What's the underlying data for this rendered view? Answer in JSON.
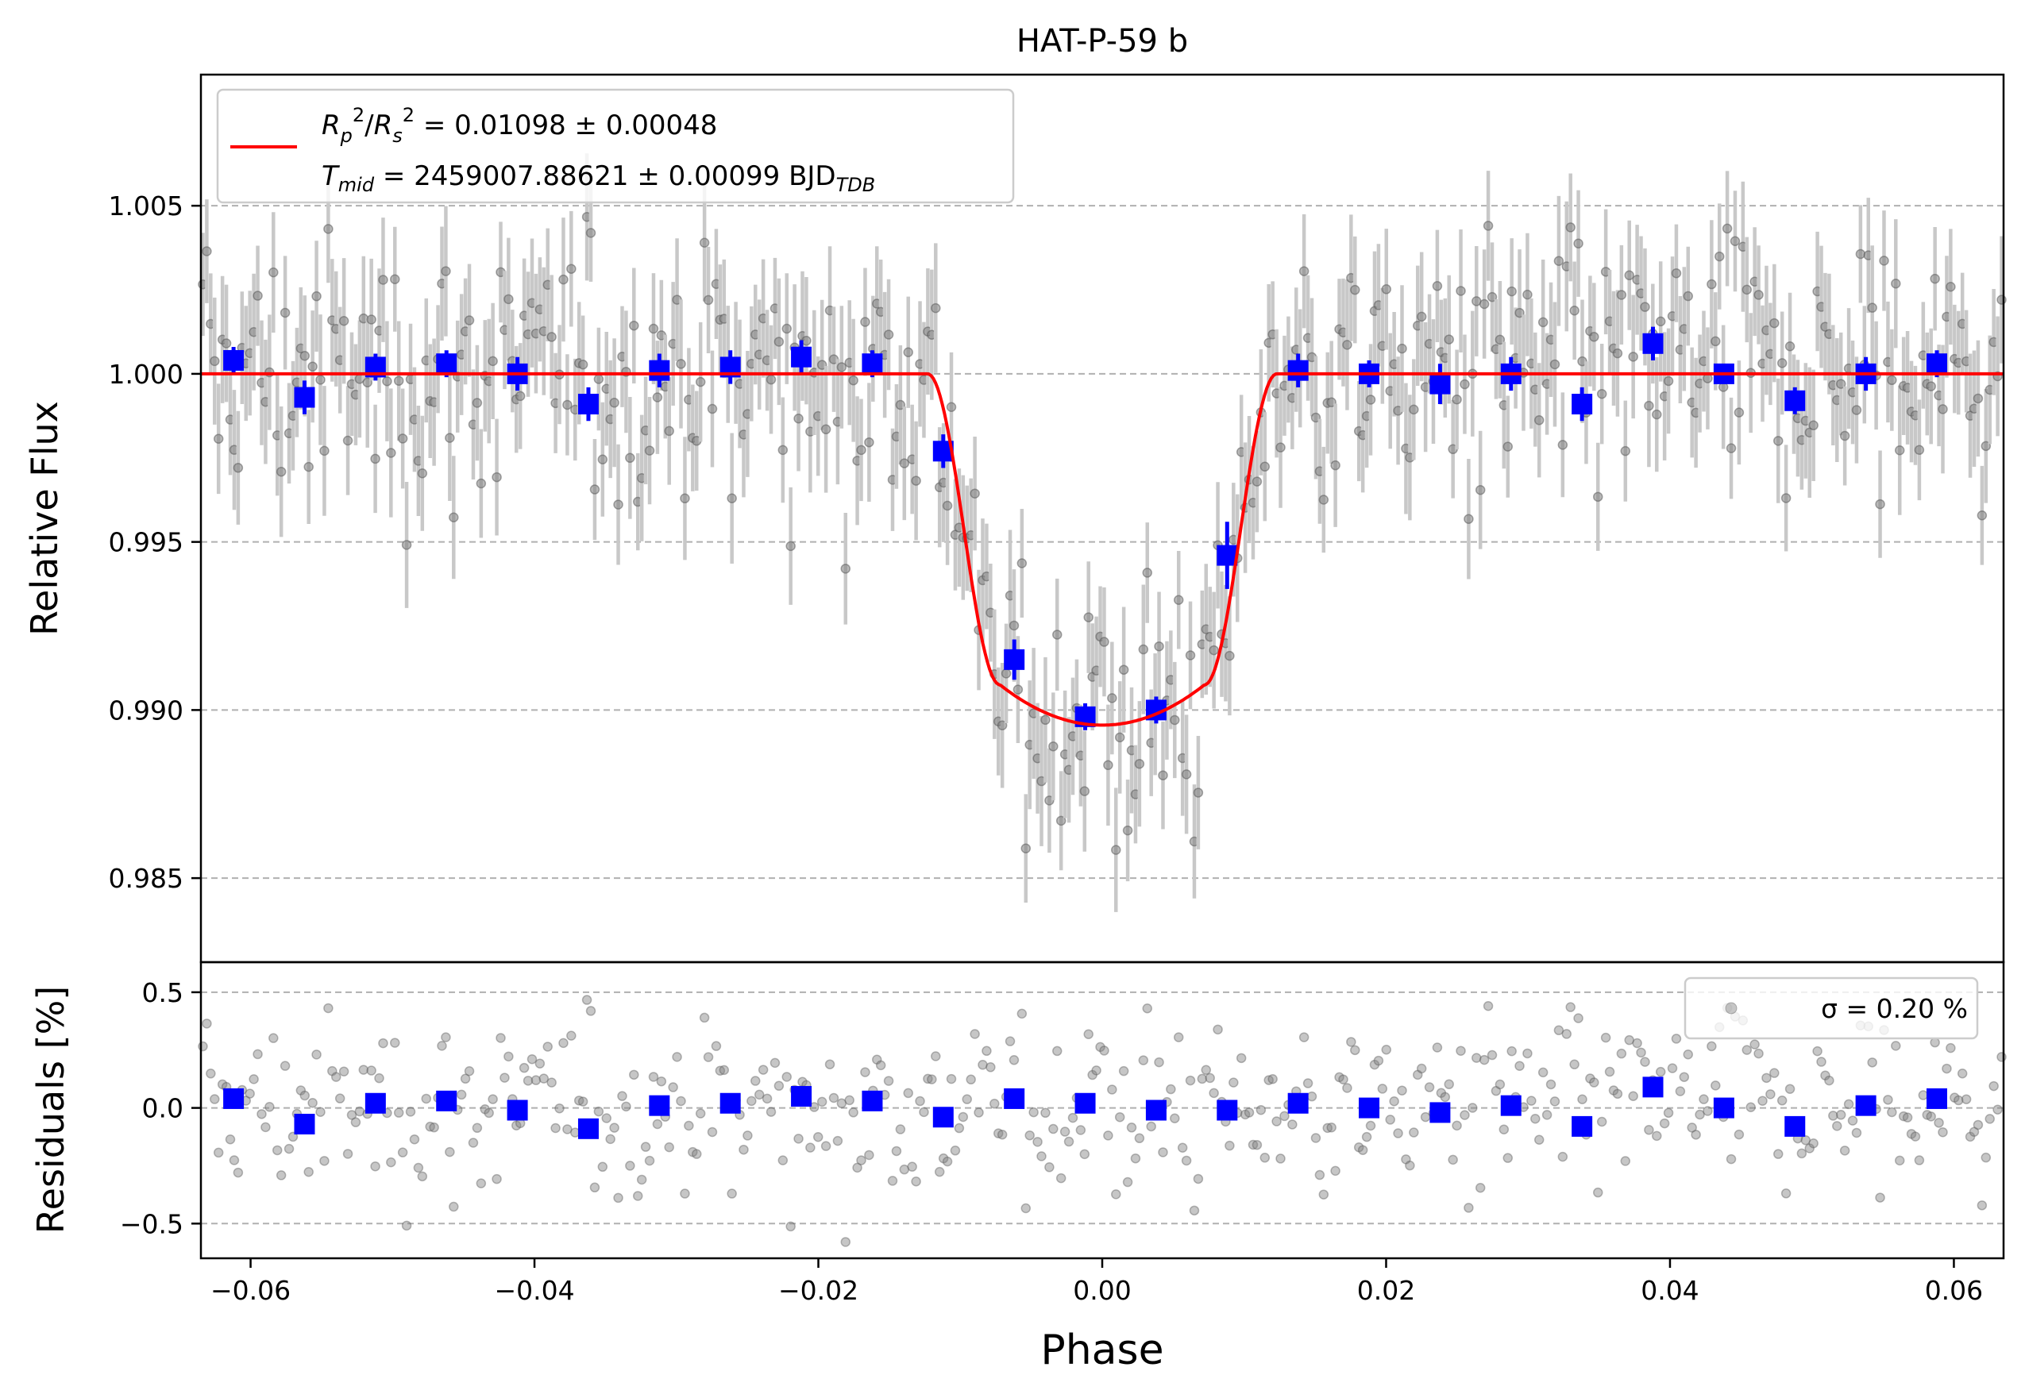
{
  "chart_data": [
    {
      "type": "scatter",
      "panel": "top",
      "title": "HAT-P-59 b",
      "xlabel": "",
      "ylabel": "Relative Flux",
      "xlim": [
        -0.0635,
        0.0635
      ],
      "ylim": [
        0.9825,
        1.0089
      ],
      "yticks": [
        0.985,
        0.99,
        0.995,
        1.0,
        1.005
      ],
      "ytick_labels": [
        "0.985",
        "0.990",
        "0.995",
        "1.000",
        "1.005"
      ],
      "grid": "horizontal dashed",
      "legend": {
        "placement": "top-left",
        "line1": "R_p²/R_s² = 0.01098 ± 0.00048",
        "line2": "T_mid = 2459007.88621 ± 0.00099 BJD_TDB"
      },
      "model": {
        "name": "transit model",
        "depth": 0.01098,
        "t14_half": 0.0123,
        "t23_half": 0.0072,
        "baseline": 1.0,
        "min_flux": 0.98955
      },
      "binned": {
        "x": [
          -0.0612,
          -0.0562,
          -0.0512,
          -0.0462,
          -0.0412,
          -0.0362,
          -0.0312,
          -0.0262,
          -0.0212,
          -0.0162,
          -0.0112,
          -0.0062,
          -0.0012,
          0.0038,
          0.0088,
          0.0138,
          0.0188,
          0.0238,
          0.0288,
          0.0338,
          0.0388,
          0.0438,
          0.0488,
          0.0538,
          0.0588
        ],
        "y": [
          1.0004,
          0.9993,
          1.0002,
          1.0003,
          1.0,
          0.9991,
          1.0001,
          1.0002,
          1.0005,
          1.0003,
          0.9977,
          0.9915,
          0.9898,
          0.99,
          0.9946,
          1.0001,
          1.0,
          0.9997,
          1.0,
          0.9991,
          1.0009,
          1.0,
          0.9992,
          1.0,
          1.0003
        ],
        "yerr": [
          0.0004,
          0.0005,
          0.0004,
          0.0004,
          0.0005,
          0.0005,
          0.0005,
          0.0005,
          0.0005,
          0.0004,
          0.0005,
          0.0006,
          0.0004,
          0.0004,
          0.001,
          0.0005,
          0.0004,
          0.0006,
          0.0005,
          0.0005,
          0.0005,
          0.0003,
          0.0004,
          0.0005,
          0.0004
        ]
      },
      "raw": {
        "n_points": 460,
        "scatter_sigma": 0.002,
        "typical_error": 0.0017
      }
    },
    {
      "type": "scatter",
      "panel": "bottom",
      "xlabel": "Phase",
      "ylabel": "Residuals [%]",
      "xlim": [
        -0.0635,
        0.0635
      ],
      "ylim": [
        -0.65,
        0.63
      ],
      "xticks": [
        -0.06,
        -0.04,
        -0.02,
        0.0,
        0.02,
        0.04,
        0.06
      ],
      "xtick_labels": [
        "−0.06",
        "−0.04",
        "−0.02",
        "0.00",
        "0.02",
        "0.04",
        "0.06"
      ],
      "yticks": [
        -0.5,
        0.0,
        0.5
      ],
      "ytick_labels": [
        "−0.5",
        "0.0",
        "0.5"
      ],
      "grid": "horizontal dashed",
      "legend": {
        "placement": "top-right",
        "label": "σ = 0.20 %"
      },
      "binned": {
        "x": [
          -0.0612,
          -0.0562,
          -0.0512,
          -0.0462,
          -0.0412,
          -0.0362,
          -0.0312,
          -0.0262,
          -0.0212,
          -0.0162,
          -0.0112,
          -0.0062,
          -0.0012,
          0.0038,
          0.0088,
          0.0138,
          0.0188,
          0.0238,
          0.0288,
          0.0338,
          0.0388,
          0.0438,
          0.0488,
          0.0538,
          0.0588
        ],
        "y": [
          0.04,
          -0.07,
          0.02,
          0.03,
          -0.01,
          -0.09,
          0.01,
          0.02,
          0.05,
          0.03,
          -0.04,
          0.04,
          0.02,
          -0.01,
          -0.01,
          0.02,
          0.0,
          -0.02,
          0.01,
          -0.08,
          0.09,
          0.0,
          -0.08,
          0.01,
          0.04
        ]
      }
    }
  ]
}
